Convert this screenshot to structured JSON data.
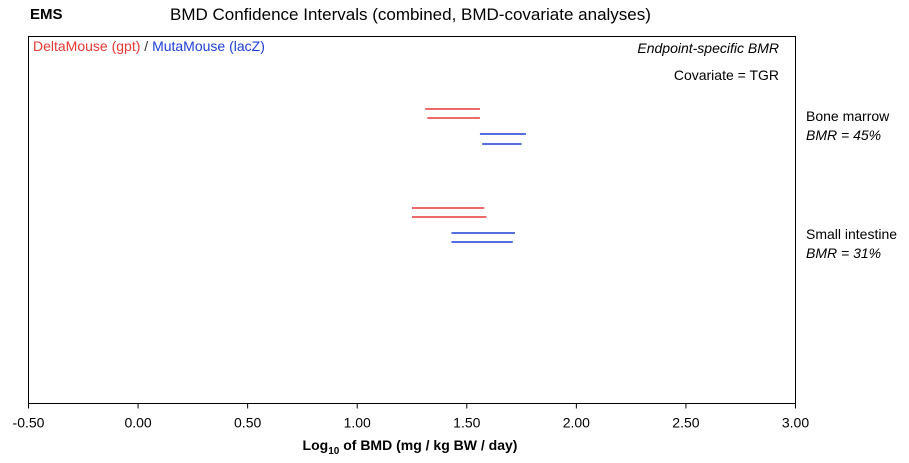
{
  "panel_label": "EMS",
  "chart_data": {
    "type": "interval",
    "title": "BMD Confidence Intervals (combined, BMD-covariate analyses)",
    "xlabel_prefix": "Log",
    "xlabel_sub": "10",
    "xlabel_suffix": " of BMD (mg / kg BW / day)",
    "xlim": [
      -0.5,
      3.0
    ],
    "xticks": [
      "-0.50",
      "0.00",
      "0.50",
      "1.00",
      "1.50",
      "2.00",
      "2.50",
      "3.00"
    ],
    "xtick_values": [
      -0.5,
      0.0,
      0.5,
      1.0,
      1.5,
      2.0,
      2.5,
      3.0
    ],
    "legend": {
      "items": [
        {
          "label": "DeltaMouse (gpt)",
          "color": "#e53935"
        },
        {
          "label": "MutaMouse (lacZ)",
          "color": "#1e3fd6"
        }
      ],
      "separator": " / ",
      "position": "top-left"
    },
    "bmr_note": "Endpoint-specific BMR",
    "covariate_note": "Covariate = TGR",
    "groups": [
      {
        "name": "Bone marrow",
        "bmr": "BMR = 45%",
        "intervals": [
          {
            "strain": "DeltaMouse (gpt)",
            "color": "#e53935",
            "lower": 1.31,
            "upper": 1.56
          },
          {
            "strain": "DeltaMouse (gpt)",
            "color": "#e53935",
            "lower": 1.32,
            "upper": 1.56
          },
          {
            "strain": "MutaMouse (lacZ)",
            "color": "#1e3fd6",
            "lower": 1.56,
            "upper": 1.77
          },
          {
            "strain": "MutaMouse (lacZ)",
            "color": "#1e3fd6",
            "lower": 1.57,
            "upper": 1.75
          }
        ]
      },
      {
        "name": "Small intestine",
        "bmr": "BMR = 31%",
        "intervals": [
          {
            "strain": "DeltaMouse (gpt)",
            "color": "#e53935",
            "lower": 1.25,
            "upper": 1.58
          },
          {
            "strain": "DeltaMouse (gpt)",
            "color": "#e53935",
            "lower": 1.25,
            "upper": 1.59
          },
          {
            "strain": "MutaMouse (lacZ)",
            "color": "#1e3fd6",
            "lower": 1.43,
            "upper": 1.72
          },
          {
            "strain": "MutaMouse (lacZ)",
            "color": "#1e3fd6",
            "lower": 1.43,
            "upper": 1.71
          }
        ]
      }
    ]
  }
}
